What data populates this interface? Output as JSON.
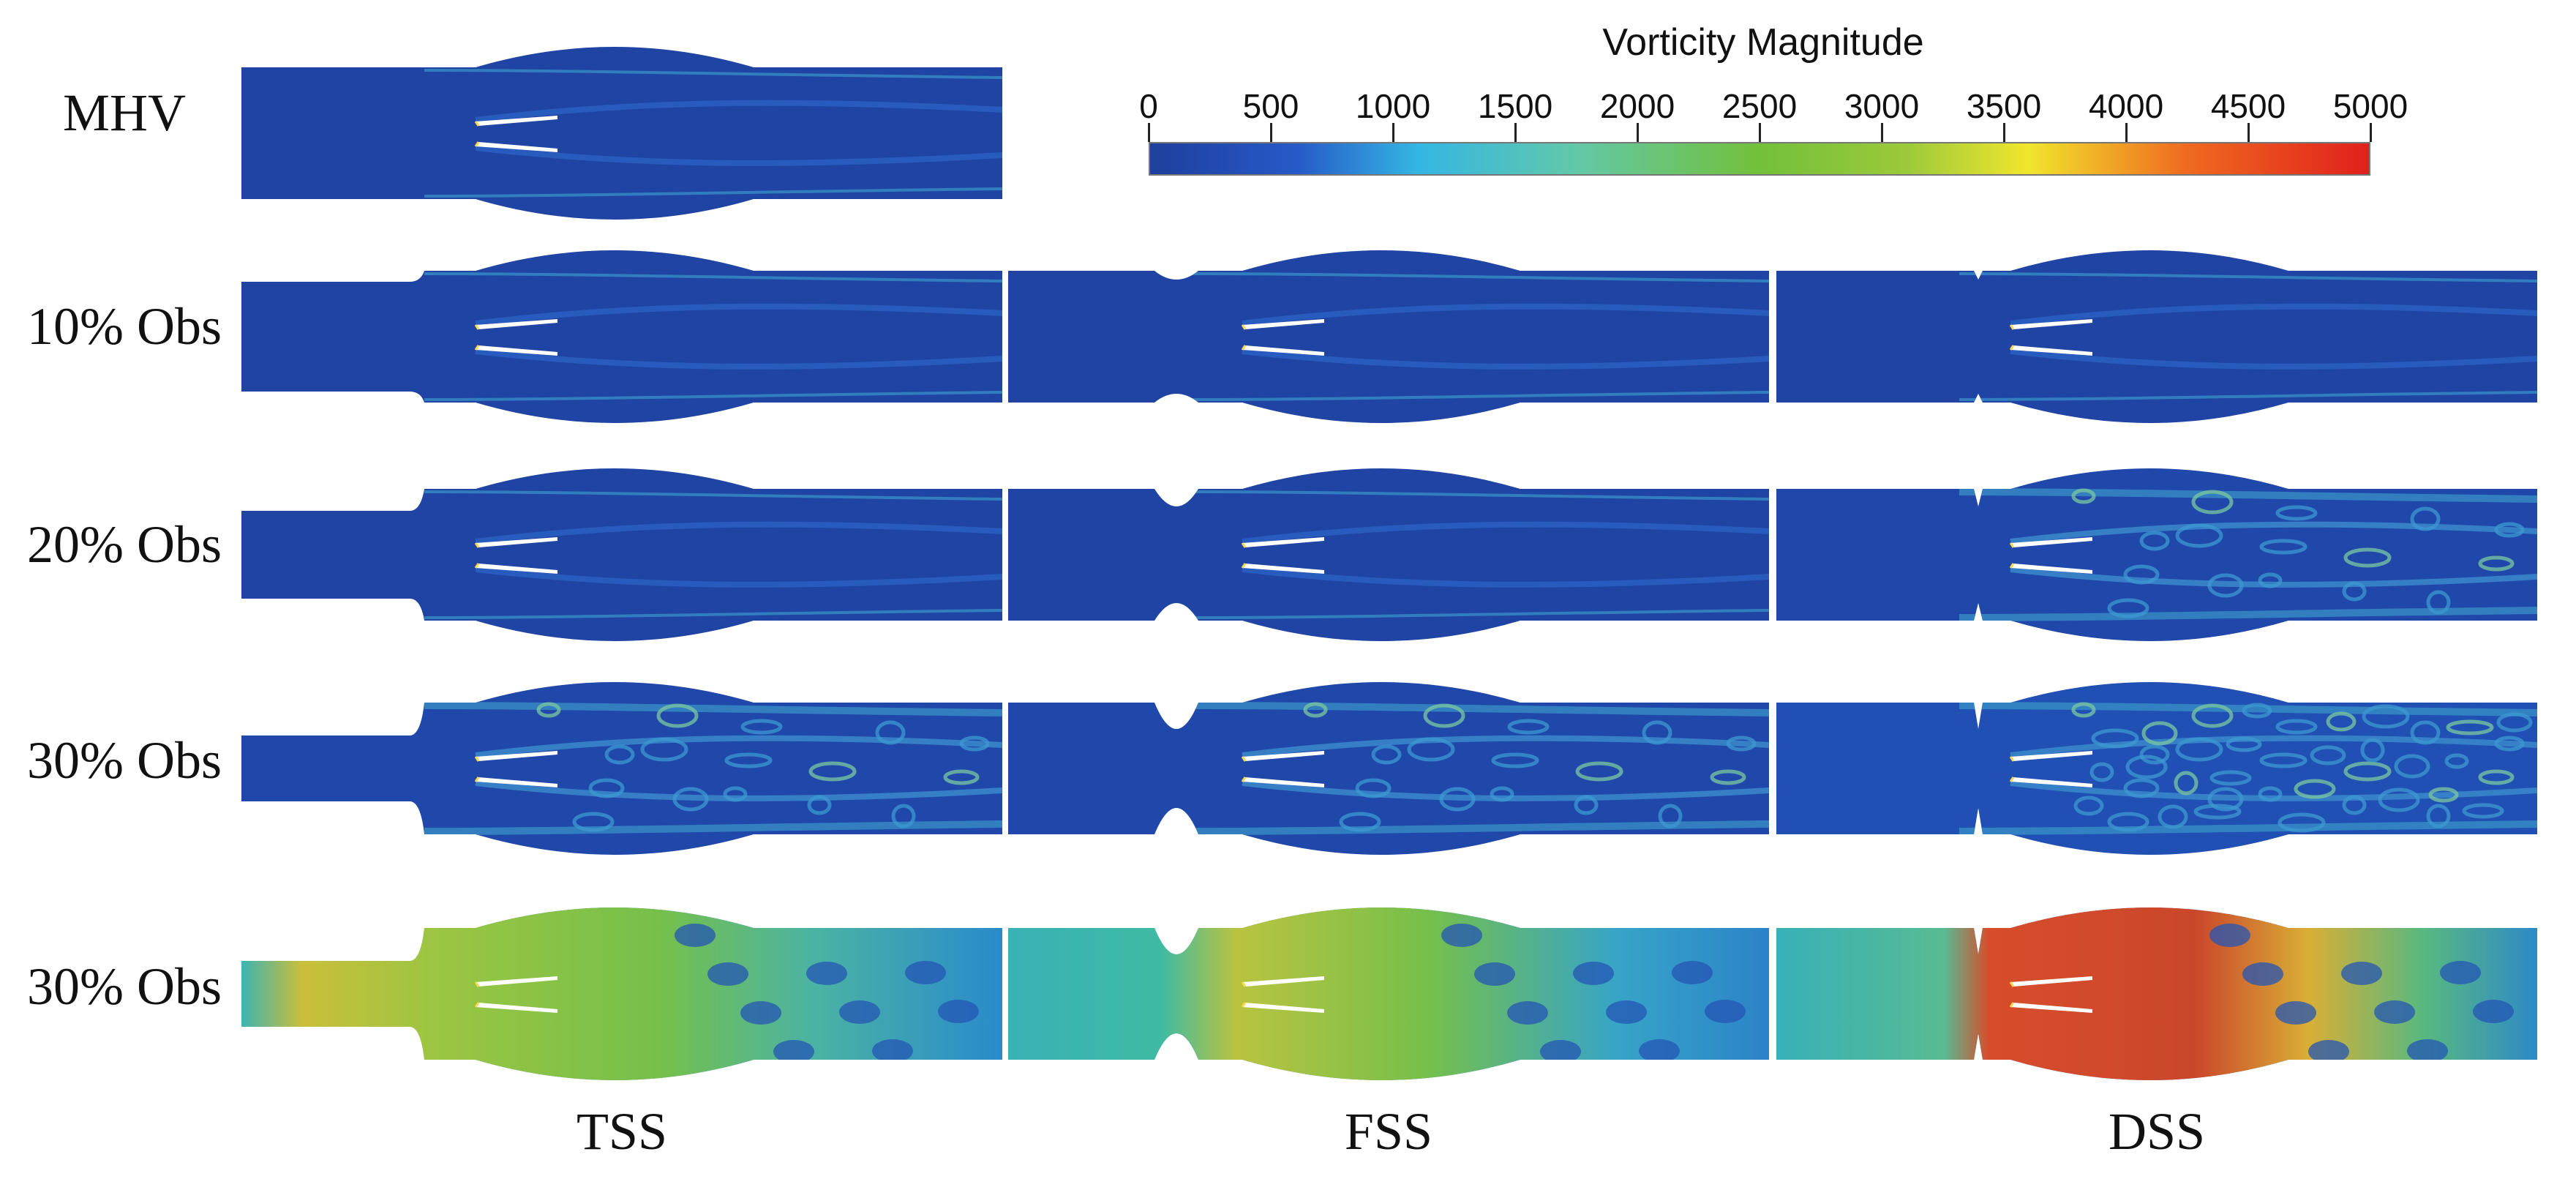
{
  "figure": {
    "rows": [
      {
        "label": "MHV",
        "variant": "mhv",
        "panels": [
          {
            "column": "TSS",
            "regime": "low",
            "obstruction": 0
          }
        ]
      },
      {
        "label": "10% Obs",
        "variant": "o10",
        "panels": [
          {
            "column": "TSS",
            "regime": "low",
            "obstruction": 0.1
          },
          {
            "column": "FSS",
            "regime": "low",
            "obstruction": 0.1
          },
          {
            "column": "DSS",
            "regime": "low",
            "obstruction": 0.1
          }
        ]
      },
      {
        "label": "20% Obs",
        "variant": "o20",
        "panels": [
          {
            "column": "TSS",
            "regime": "low",
            "obstruction": 0.2
          },
          {
            "column": "FSS",
            "regime": "low",
            "obstruction": 0.2
          },
          {
            "column": "DSS",
            "regime": "medium",
            "obstruction": 0.2
          }
        ]
      },
      {
        "label": "30% Obs",
        "variant": "o30",
        "panels": [
          {
            "column": "TSS",
            "regime": "medium",
            "obstruction": 0.3
          },
          {
            "column": "FSS",
            "regime": "medium",
            "obstruction": 0.3
          },
          {
            "column": "DSS",
            "regime": "turbulent",
            "obstruction": 0.3
          }
        ]
      },
      {
        "label": "30% Obs",
        "variant": "o30h",
        "panels": [
          {
            "column": "TSS",
            "regime": "high",
            "obstruction": 0.3
          },
          {
            "column": "FSS",
            "regime": "high",
            "obstruction": 0.3
          },
          {
            "column": "DSS",
            "regime": "very-high",
            "obstruction": 0.3
          }
        ]
      }
    ],
    "columns": [
      {
        "label": "TSS"
      },
      {
        "label": "FSS"
      },
      {
        "label": "DSS"
      }
    ]
  },
  "colorbar": {
    "title": "Vorticity Magnitude",
    "min": 0,
    "max": 5000,
    "ticks": [
      "0",
      "500",
      "1000",
      "1500",
      "2000",
      "2500",
      "3000",
      "3500",
      "4000",
      "4500",
      "5000"
    ],
    "tick_values": [
      0,
      500,
      1000,
      1500,
      2000,
      2500,
      3000,
      3500,
      4000,
      4500,
      5000
    ],
    "colormap": [
      [
        0,
        "#1e3f9d"
      ],
      [
        0.12,
        "#2759c8"
      ],
      [
        0.22,
        "#34b6e4"
      ],
      [
        0.35,
        "#62c8a8"
      ],
      [
        0.5,
        "#73c03a"
      ],
      [
        0.62,
        "#9bc93a"
      ],
      [
        0.72,
        "#f1e62c"
      ],
      [
        0.85,
        "#ef6a1f"
      ],
      [
        1.0,
        "#e0201d"
      ]
    ]
  }
}
